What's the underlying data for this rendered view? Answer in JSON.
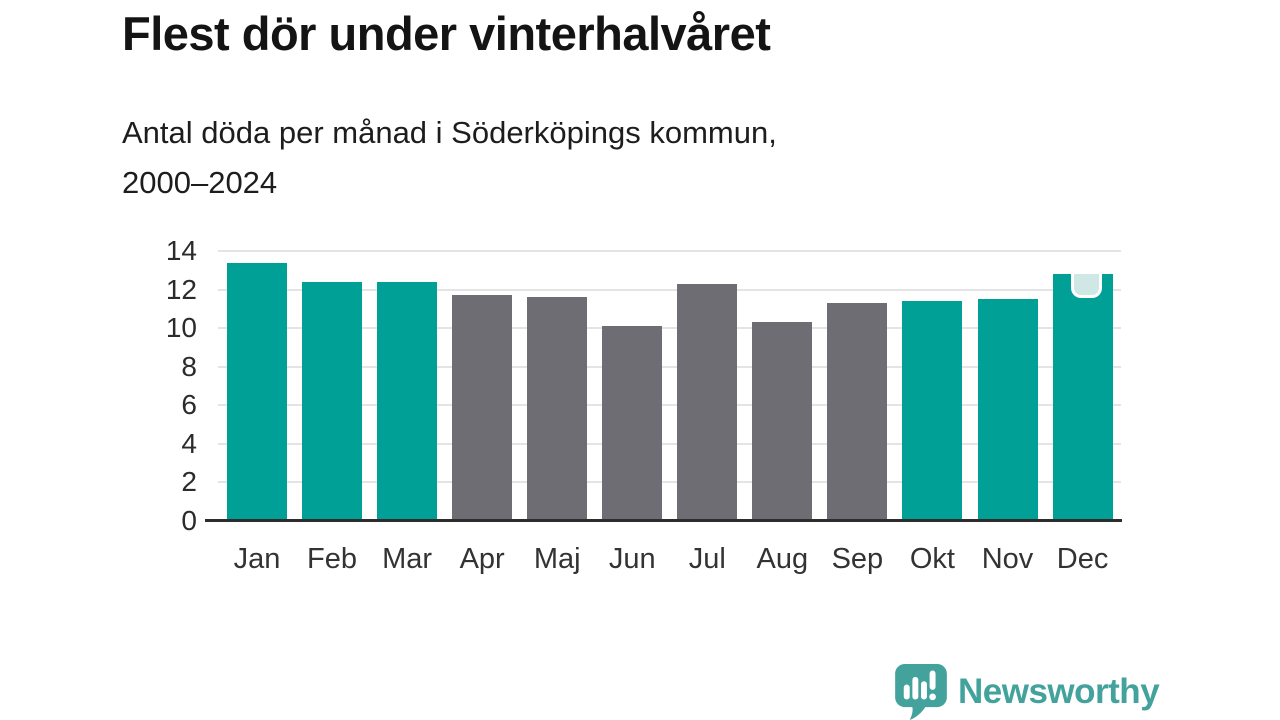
{
  "header": {
    "title": "Flest dör under vinterhalvåret",
    "subtitle": "Antal döda per månad i Söderköpings kommun,\n2000–2024"
  },
  "chart_data": {
    "type": "bar",
    "title": "Flest dör under vinterhalvåret",
    "subtitle": "Antal döda per månad i Söderköpings kommun, 2000–2024",
    "categories": [
      "Jan",
      "Feb",
      "Mar",
      "Apr",
      "Maj",
      "Jun",
      "Jul",
      "Aug",
      "Sep",
      "Okt",
      "Nov",
      "Dec"
    ],
    "values": [
      13.4,
      12.4,
      12.4,
      11.7,
      11.6,
      10.1,
      12.3,
      10.3,
      11.3,
      11.4,
      11.5,
      12.8
    ],
    "groups": [
      "winter",
      "winter",
      "winter",
      "summer",
      "summer",
      "summer",
      "summer",
      "summer",
      "summer",
      "winter",
      "winter",
      "winter"
    ],
    "highlight_index": 11,
    "ylim": [
      0,
      14
    ],
    "yticks": [
      0,
      2,
      4,
      6,
      8,
      10,
      12,
      14
    ],
    "grid": true,
    "legend": "none",
    "colors": {
      "winter": "#00A096",
      "summer": "#6F6D74",
      "highlight_marker": "#CFE8E5",
      "gridline": "#E4E4E4",
      "axis": "#2D2D2D"
    }
  },
  "footer": {
    "brand": "Newsworthy",
    "brand_color": "#43A29C",
    "logo_icon": "newsworthy-speech-bubble-bar-chart-icon"
  }
}
